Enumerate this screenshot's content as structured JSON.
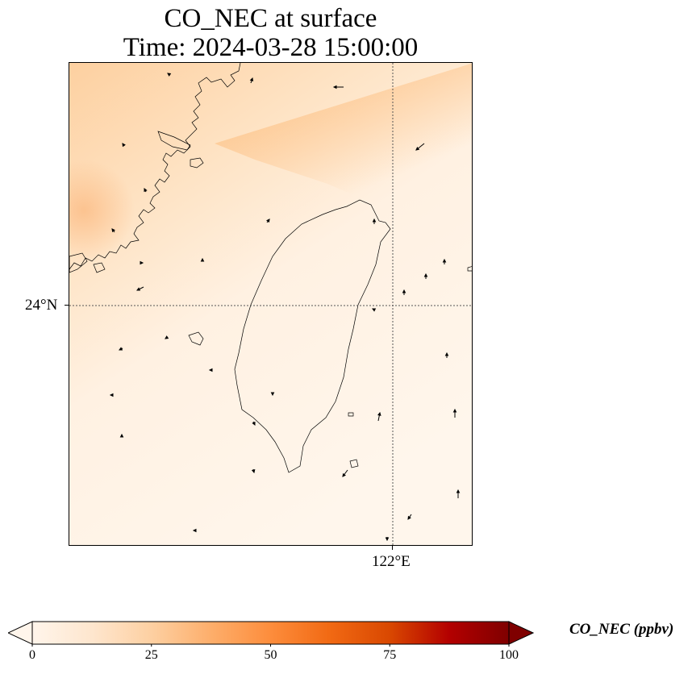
{
  "title_line1": "CO_NEC at surface",
  "title_line2": "Time: 2024-03-28 15:00:00",
  "map": {
    "lat_label": "24°N",
    "lon_label": "122°E",
    "gridline_color": "#555555"
  },
  "colorbar": {
    "label": "CO_NEC (ppbv)",
    "ticks": [
      "0",
      "25",
      "50",
      "75",
      "100"
    ],
    "min": 0,
    "max": 100,
    "extend": "both",
    "colormap": [
      "#fff5eb",
      "#fee6ce",
      "#fdd0a2",
      "#fdae6b",
      "#fd8d3c",
      "#f16913",
      "#d94801",
      "#b30000",
      "#7f0000"
    ]
  }
}
